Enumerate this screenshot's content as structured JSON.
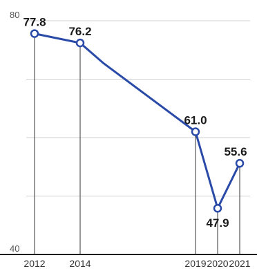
{
  "chart_data": {
    "type": "line",
    "title": "",
    "xlabel": "",
    "ylabel": "",
    "ylim": [
      40,
      80
    ],
    "y_ticks": [
      40,
      80
    ],
    "grid": "horizontal",
    "x": [
      2012,
      2014,
      2015,
      2019,
      2020,
      2021
    ],
    "x_ticks": [
      "2012",
      "2014",
      "2019",
      "2020",
      "2021"
    ],
    "series": [
      {
        "values": [
          77.8,
          76.2,
          72.8,
          61.0,
          47.9,
          55.6
        ],
        "color": "#2a4aa8"
      }
    ],
    "point_labels": [
      {
        "x": 2012,
        "label": "77.8",
        "position": "above"
      },
      {
        "x": 2014,
        "label": "76.2",
        "position": "above"
      },
      {
        "x": 2019,
        "label": "61.0",
        "position": "above"
      },
      {
        "x": 2020,
        "label": "47.9",
        "position": "below"
      },
      {
        "x": 2021,
        "label": "55.6",
        "position": "above"
      }
    ],
    "marker_points": [
      2012,
      2014,
      2019,
      2020,
      2021
    ]
  }
}
